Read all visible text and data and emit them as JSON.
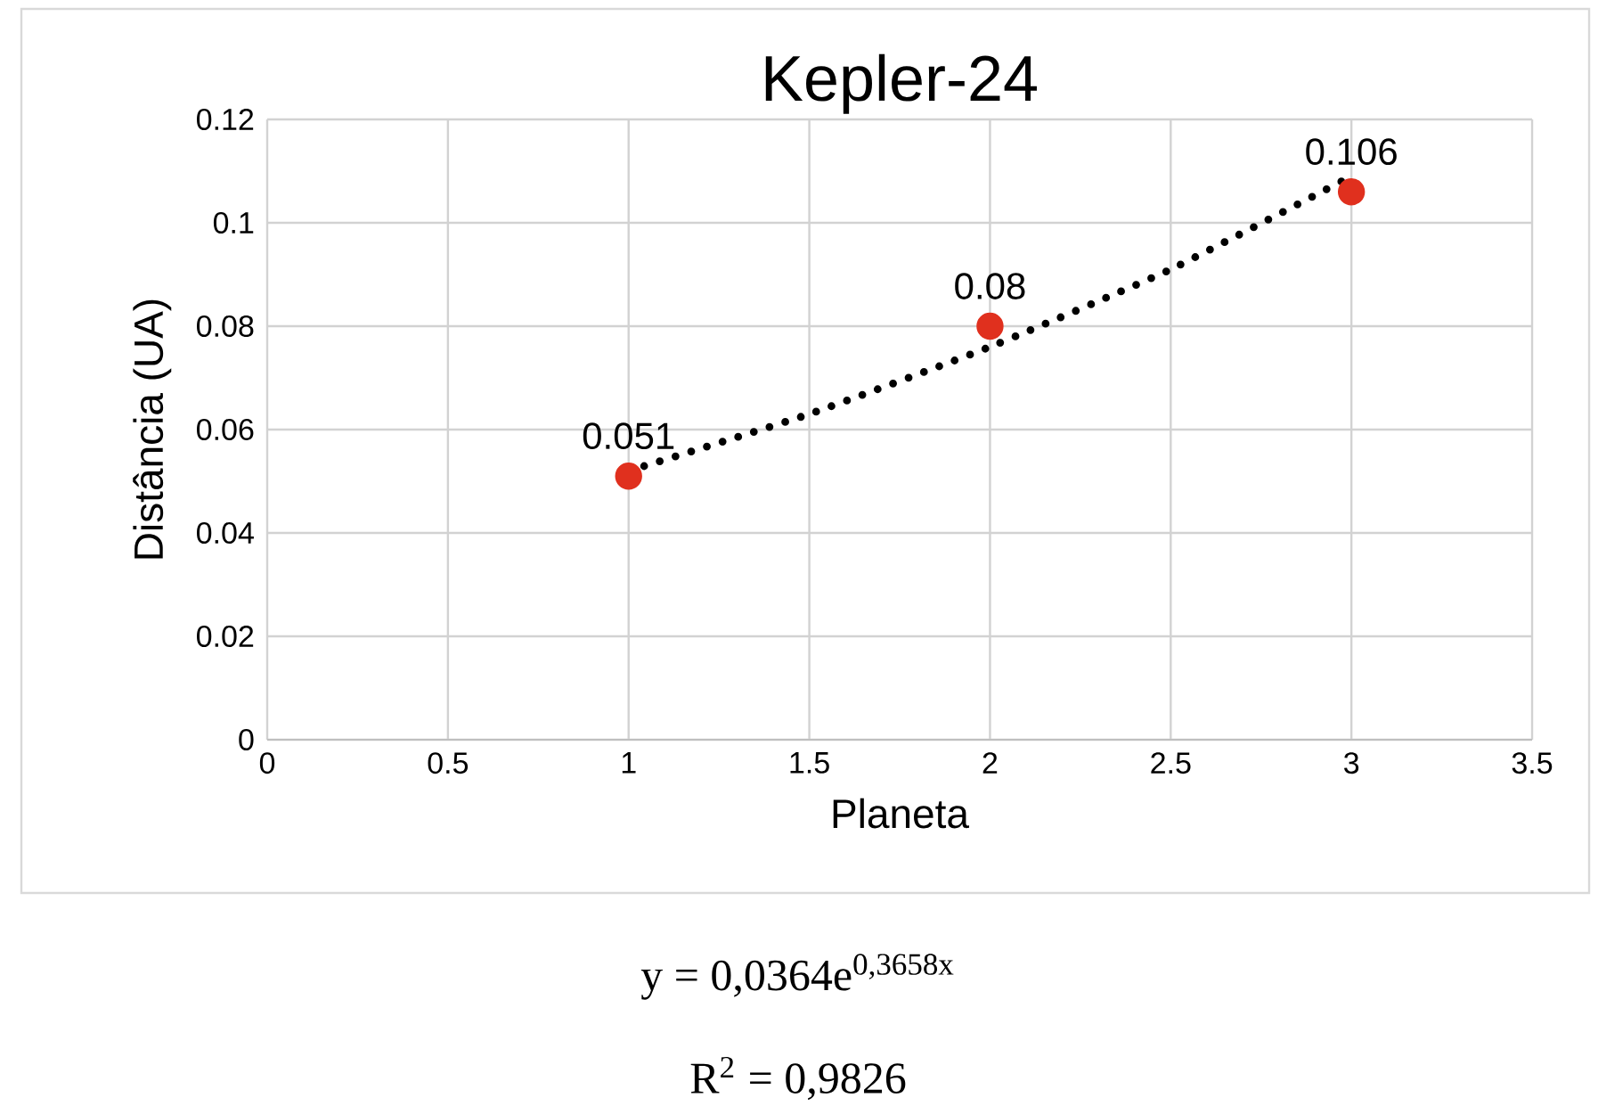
{
  "chart_data": {
    "type": "scatter",
    "title": "Kepler-24",
    "xlabel": "Planeta",
    "ylabel": "Distância (UA)",
    "xlim": [
      0,
      3.5
    ],
    "xticks": [
      0,
      0.5,
      1,
      1.5,
      2,
      2.5,
      3,
      3.5
    ],
    "ylim": [
      0,
      0.12
    ],
    "yticks": [
      0,
      0.02,
      0.04,
      0.06,
      0.08,
      0.1,
      0.12
    ],
    "grid": true,
    "marker": "circle",
    "series": [
      {
        "type": "scatter",
        "color": "#e0301e",
        "x": [
          1,
          2,
          3
        ],
        "values": [
          0.051,
          0.08,
          0.106
        ],
        "value_labels": [
          "0.051",
          "0.08",
          "0.106"
        ]
      },
      {
        "type": "line",
        "marker": "none",
        "color": "#000000",
        "line_style": "dotted",
        "x": [
          1,
          1.5,
          2,
          2.5,
          3
        ],
        "values": [
          0.052,
          0.063,
          0.076,
          0.091,
          0.109
        ]
      }
    ],
    "annotations": [
      "y = 0,0364e$^{0,3658x}$",
      "R$^{2}$ = 0,9826"
    ]
  }
}
